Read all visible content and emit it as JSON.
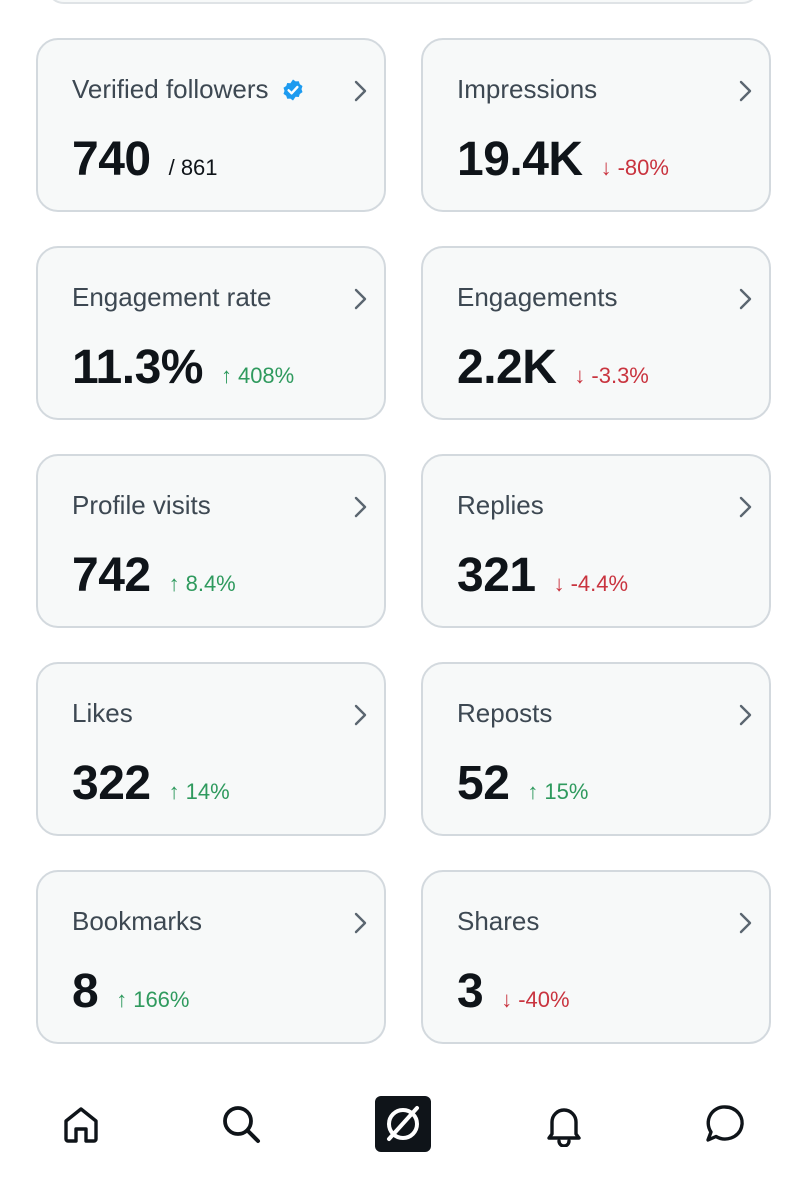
{
  "cards": [
    {
      "title": "Verified followers",
      "value": "740",
      "total": "/ 861",
      "verified": true
    },
    {
      "title": "Impressions",
      "value": "19.4K",
      "delta": "-80%",
      "dir": "down"
    },
    {
      "title": "Engagement rate",
      "value": "11.3%",
      "delta": "408%",
      "dir": "up"
    },
    {
      "title": "Engagements",
      "value": "2.2K",
      "delta": "-3.3%",
      "dir": "down"
    },
    {
      "title": "Profile visits",
      "value": "742",
      "delta": "8.4%",
      "dir": "up"
    },
    {
      "title": "Replies",
      "value": "321",
      "delta": "-4.4%",
      "dir": "down"
    },
    {
      "title": "Likes",
      "value": "322",
      "delta": "14%",
      "dir": "up"
    },
    {
      "title": "Reposts",
      "value": "52",
      "delta": "15%",
      "dir": "up"
    },
    {
      "title": "Bookmarks",
      "value": "8",
      "delta": "166%",
      "dir": "up"
    },
    {
      "title": "Shares",
      "value": "3",
      "delta": "-40%",
      "dir": "down"
    }
  ],
  "arrows": {
    "up": "↑",
    "down": "↓"
  },
  "colors": {
    "up": "#2f9a5e",
    "down": "#c9343f",
    "verified": "#1d9bf0"
  },
  "nav": [
    {
      "name": "home-icon"
    },
    {
      "name": "search-icon"
    },
    {
      "name": "grok-icon"
    },
    {
      "name": "notifications-icon"
    },
    {
      "name": "messages-icon"
    }
  ]
}
